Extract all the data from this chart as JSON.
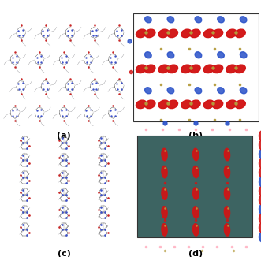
{
  "figure_width": 3.31,
  "figure_height": 3.26,
  "dpi": 100,
  "bg_white": "#ffffff",
  "panel_labels": [
    "(a)",
    "(b)",
    "(c)",
    "(d)"
  ],
  "label_fontsize": 8,
  "label_fontweight": "bold",
  "teal_bg": [
    61,
    100,
    98
  ],
  "red_blob": [
    210,
    20,
    20
  ],
  "blue_blob": [
    40,
    80,
    200
  ],
  "yellow_dot": [
    180,
    155,
    60
  ],
  "pink_dot": [
    255,
    160,
    180
  ],
  "grey_mol": [
    140,
    140,
    145
  ],
  "blue_mol": [
    60,
    80,
    200
  ],
  "red_mol": [
    200,
    40,
    40
  ],
  "dark_mol": [
    60,
    60,
    60
  ]
}
